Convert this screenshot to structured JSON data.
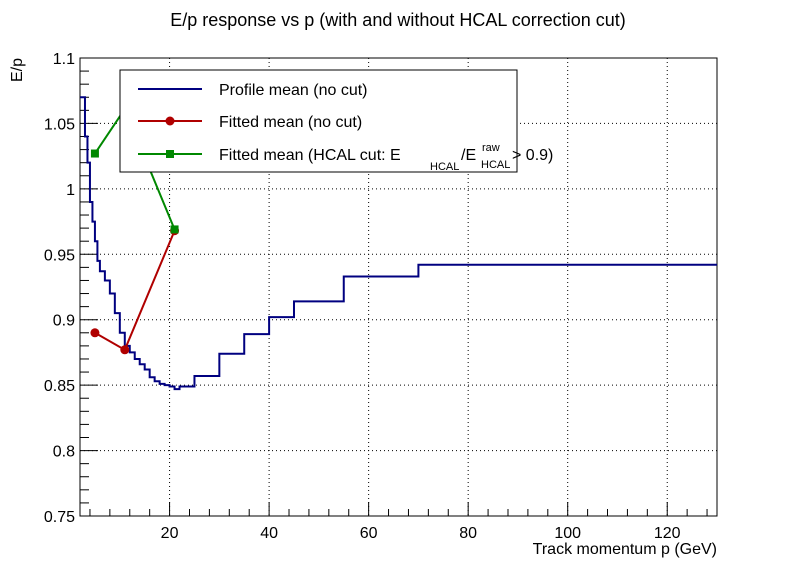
{
  "chart_data": {
    "type": "line",
    "title": "E/p response vs p (with and without HCAL correction cut)",
    "xlabel": "Track momentum p (GeV)",
    "ylabel": "E/p",
    "xlim": [
      2,
      130
    ],
    "ylim": [
      0.75,
      1.1
    ],
    "x_ticks": [
      20,
      40,
      60,
      80,
      100,
      120
    ],
    "y_ticks": [
      0.75,
      0.8,
      0.85,
      0.9,
      0.95,
      1.0,
      1.05,
      1.1
    ],
    "y_tick_labels": [
      "0.75",
      "0.8",
      "0.85",
      "0.9",
      "0.95",
      "1",
      "1.05",
      "1.1"
    ],
    "grid": true,
    "legend_placement": "top-left",
    "series": [
      {
        "name": "Profile mean (no cut)",
        "style": "step",
        "color": "#000080",
        "bin_edges": [
          2,
          3,
          3.5,
          4,
          4.5,
          5,
          5.5,
          6,
          7,
          8,
          9,
          10,
          11,
          12,
          13,
          14,
          15,
          16,
          17,
          18,
          19,
          20,
          21,
          22,
          25,
          30,
          35,
          40,
          45,
          55,
          70,
          130
        ],
        "values": [
          1.07,
          1.04,
          1.02,
          0.99,
          0.975,
          0.96,
          0.945,
          0.937,
          0.93,
          0.92,
          0.905,
          0.89,
          0.88,
          0.875,
          0.87,
          0.866,
          0.862,
          0.856,
          0.853,
          0.851,
          0.85,
          0.849,
          0.847,
          0.849,
          0.857,
          0.874,
          0.889,
          0.902,
          0.914,
          0.933,
          0.942
        ]
      },
      {
        "name": "Fitted mean (no cut)",
        "style": "line-marker",
        "marker": "circle",
        "color": "#b00000",
        "x": [
          5,
          11,
          21
        ],
        "y": [
          0.89,
          0.877,
          0.968
        ]
      },
      {
        "name": "Fitted mean (HCAL cut: E_HCAL/E^raw_HCAL > 0.9)",
        "style": "line-marker",
        "marker": "square",
        "color": "#008800",
        "x": [
          5,
          11,
          21
        ],
        "y": [
          1.027,
          1.061,
          0.969
        ]
      }
    ]
  },
  "legend": {
    "entries": [
      {
        "label": "Profile mean (no cut)",
        "color": "#000080",
        "marker": "none"
      },
      {
        "label": "Fitted mean (no cut)",
        "color": "#b00000",
        "marker": "circle"
      },
      {
        "label_prefix": "Fitted mean (HCAL cut: E",
        "label_sub1": "HCAL",
        "label_mid": "/E",
        "label_sup": "raw",
        "label_sub2": "HCAL",
        "label_suffix": " > 0.9)",
        "color": "#008800",
        "marker": "square"
      }
    ]
  }
}
